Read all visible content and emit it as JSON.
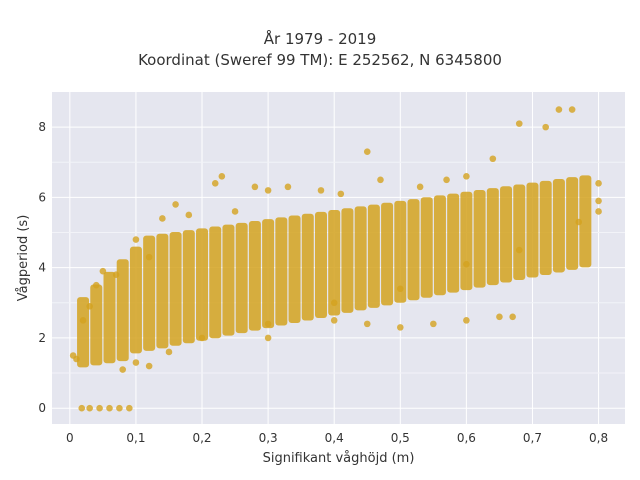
{
  "chart_data": {
    "type": "scatter",
    "title": "År 1979 - 2019",
    "subtitle": "Koordinat (Sweref 99 TM): E 252562, N 6345800",
    "xlabel": "Signifikant våghöjd (m)",
    "ylabel": "Vågperiod (s)",
    "xlim": [
      -0.027,
      0.84
    ],
    "ylim": [
      -0.45,
      9.0
    ],
    "x_ticks": [
      0,
      0.1,
      0.2,
      0.3,
      0.4,
      0.5,
      0.6,
      0.7,
      0.8
    ],
    "x_tick_labels": [
      "0",
      "0,1",
      "0,2",
      "0,3",
      "0,4",
      "0,5",
      "0,6",
      "0,7",
      "0,8"
    ],
    "y_ticks": [
      0,
      2,
      4,
      6,
      8
    ],
    "y_tick_labels": [
      "0",
      "2",
      "4",
      "6",
      "8"
    ],
    "grid": true,
    "legend": false,
    "marker_color": "#D4A21F",
    "plot_bg": "#E5E6EF",
    "series": [
      {
        "points": [
          [
            0.018,
            0.0
          ],
          [
            0.03,
            0.0
          ],
          [
            0.045,
            0.0
          ],
          [
            0.06,
            0.0
          ],
          [
            0.075,
            0.0
          ],
          [
            0.09,
            0.0
          ],
          [
            0.005,
            1.5
          ],
          [
            0.01,
            1.4
          ],
          [
            0.02,
            2.5
          ],
          [
            0.03,
            2.9
          ],
          [
            0.04,
            3.5
          ],
          [
            0.05,
            3.9
          ],
          [
            0.07,
            3.8
          ],
          [
            0.1,
            4.8
          ],
          [
            0.12,
            4.3
          ],
          [
            0.14,
            5.4
          ],
          [
            0.16,
            5.8
          ],
          [
            0.18,
            5.5
          ],
          [
            0.22,
            6.4
          ],
          [
            0.23,
            6.6
          ],
          [
            0.25,
            5.6
          ],
          [
            0.28,
            6.3
          ],
          [
            0.3,
            6.2
          ],
          [
            0.33,
            6.3
          ],
          [
            0.38,
            6.2
          ],
          [
            0.41,
            6.1
          ],
          [
            0.45,
            7.3
          ],
          [
            0.47,
            6.5
          ],
          [
            0.53,
            6.3
          ],
          [
            0.57,
            6.5
          ],
          [
            0.6,
            6.6
          ],
          [
            0.64,
            7.1
          ],
          [
            0.68,
            8.1
          ],
          [
            0.72,
            8.0
          ],
          [
            0.74,
            8.5
          ],
          [
            0.76,
            8.5
          ],
          [
            0.8,
            6.4
          ],
          [
            0.8,
            5.6
          ],
          [
            0.8,
            5.9
          ],
          [
            0.77,
            5.3
          ],
          [
            0.68,
            4.5
          ],
          [
            0.6,
            4.1
          ],
          [
            0.5,
            3.4
          ],
          [
            0.4,
            3.0
          ],
          [
            0.3,
            2.4
          ],
          [
            0.2,
            2.0
          ],
          [
            0.15,
            1.6
          ],
          [
            0.1,
            1.3
          ],
          [
            0.08,
            1.1
          ],
          [
            0.12,
            1.2
          ],
          [
            0.3,
            2.0
          ],
          [
            0.4,
            2.5
          ],
          [
            0.45,
            2.4
          ],
          [
            0.5,
            2.3
          ],
          [
            0.55,
            2.4
          ],
          [
            0.6,
            2.5
          ],
          [
            0.65,
            2.6
          ],
          [
            0.67,
            2.6
          ]
        ]
      }
    ]
  }
}
